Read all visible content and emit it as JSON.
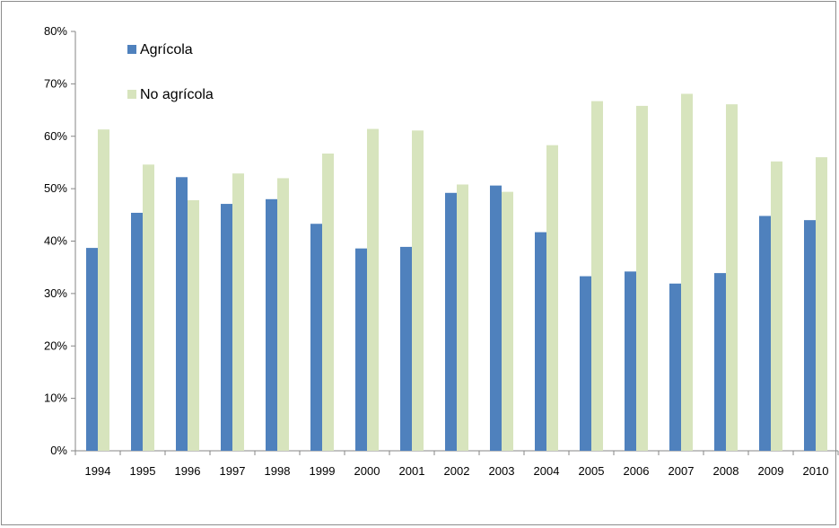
{
  "chart_data": {
    "type": "bar",
    "categories": [
      "1994",
      "1995",
      "1996",
      "1997",
      "1998",
      "1999",
      "2000",
      "2001",
      "2002",
      "2003",
      "2004",
      "2005",
      "2006",
      "2007",
      "2008",
      "2009",
      "2010"
    ],
    "series": [
      {
        "name": "Agrícola",
        "color": "#4f81bd",
        "values": [
          38.7,
          45.4,
          52.2,
          47.1,
          48.0,
          43.3,
          38.6,
          38.9,
          49.2,
          50.6,
          41.7,
          33.3,
          34.2,
          31.9,
          33.9,
          44.8,
          44.0
        ]
      },
      {
        "name": "No agrícola",
        "color": "#d7e4bd",
        "values": [
          61.3,
          54.6,
          47.8,
          52.9,
          52.0,
          56.7,
          61.4,
          61.1,
          50.8,
          49.4,
          58.3,
          66.7,
          65.8,
          68.1,
          66.1,
          55.2,
          56.0
        ]
      }
    ],
    "ylim": [
      0,
      80
    ],
    "yticks": [
      "0%",
      "10%",
      "20%",
      "30%",
      "40%",
      "50%",
      "60%",
      "70%",
      "80%"
    ],
    "ytick_values": [
      0,
      10,
      20,
      30,
      40,
      50,
      60,
      70,
      80
    ],
    "legend_position": "top-left, inside plot",
    "grid": false
  }
}
